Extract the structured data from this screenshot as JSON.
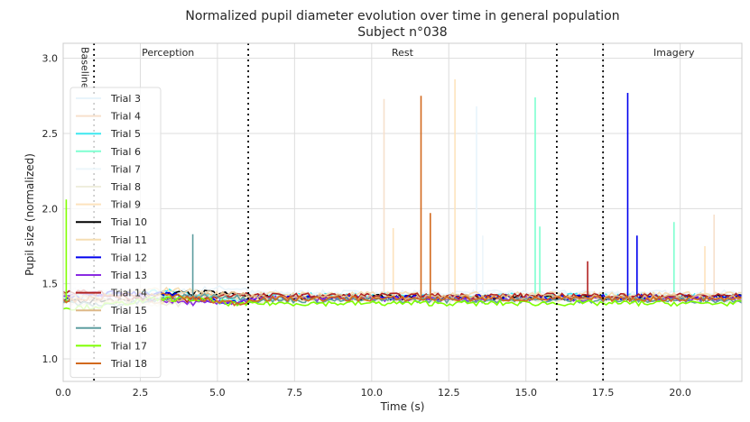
{
  "chart_data": {
    "type": "line",
    "title": "Normalized pupil diameter evolution over time in general population",
    "subtitle": "Subject n°038",
    "xlabel": "Time (s)",
    "ylabel": "Pupil size (normalized)",
    "xlim": [
      0,
      22
    ],
    "ylim": [
      0.85,
      3.1
    ],
    "xticks": [
      0,
      2.5,
      5,
      7.5,
      10,
      12.5,
      15,
      17.5,
      20
    ],
    "xtick_labels": [
      "0.0",
      "2.5",
      "5.0",
      "7.5",
      "10.0",
      "12.5",
      "15.0",
      "17.5",
      "20.0"
    ],
    "yticks": [
      1.0,
      1.5,
      2.0,
      2.5,
      3.0
    ],
    "ytick_labels": [
      "1.0",
      "1.5",
      "2.0",
      "2.5",
      "3.0"
    ],
    "grid": true,
    "legend_position": "left",
    "phase_boundaries": [
      1,
      6,
      16,
      17.5
    ],
    "phase_labels": [
      {
        "text": "Baseline",
        "x": 0.75,
        "vertical": true
      },
      {
        "text": "Perception",
        "x": 3.4
      },
      {
        "text": "Rest",
        "x": 11
      },
      {
        "text": "Imagery",
        "x": 19.8
      }
    ],
    "series": [
      {
        "name": "Trial 3",
        "color": "#e8f4fb",
        "base": 1.44,
        "spikes": [
          [
            13.4,
            2.68
          ],
          [
            4.2,
            1.72
          ]
        ]
      },
      {
        "name": "Trial 4",
        "color": "#f7e0cc",
        "base": 1.4,
        "spikes": [
          [
            10.4,
            2.73
          ],
          [
            21.1,
            1.96
          ]
        ]
      },
      {
        "name": "Trial 5",
        "color": "#3ee8f0",
        "base": 1.42,
        "spikes": []
      },
      {
        "name": "Trial 6",
        "color": "#7fffd0",
        "base": 1.41,
        "spikes": [
          [
            15.3,
            2.74
          ],
          [
            15.45,
            1.88
          ],
          [
            19.8,
            1.91
          ]
        ]
      },
      {
        "name": "Trial 7",
        "color": "#ecf6fb",
        "base": 1.43,
        "spikes": [
          [
            13.6,
            1.82
          ]
        ]
      },
      {
        "name": "Trial 8",
        "color": "#efeedd",
        "base": 1.39,
        "spikes": []
      },
      {
        "name": "Trial 9",
        "color": "#fde3bd",
        "base": 1.4,
        "spikes": [
          [
            12.7,
            2.86
          ],
          [
            10.7,
            1.87
          ],
          [
            20.8,
            1.75
          ]
        ]
      },
      {
        "name": "Trial 10",
        "color": "#000000",
        "base": 1.41,
        "spikes": []
      },
      {
        "name": "Trial 11",
        "color": "#f5deb3",
        "base": 1.43,
        "spikes": []
      },
      {
        "name": "Trial 12",
        "color": "#0000ee",
        "base": 1.41,
        "spikes": [
          [
            18.3,
            2.77
          ],
          [
            18.6,
            1.82
          ]
        ]
      },
      {
        "name": "Trial 13",
        "color": "#8a2be2",
        "base": 1.4,
        "spikes": []
      },
      {
        "name": "Trial 14",
        "color": "#b22222",
        "base": 1.42,
        "spikes": [
          [
            17.0,
            1.65
          ]
        ]
      },
      {
        "name": "Trial 15",
        "color": "#deb887",
        "base": 1.41,
        "spikes": []
      },
      {
        "name": "Trial 16",
        "color": "#5f9ea0",
        "base": 1.39,
        "spikes": [
          [
            4.2,
            1.83
          ]
        ]
      },
      {
        "name": "Trial 17",
        "color": "#7fff00",
        "base": 1.37,
        "spikes": [
          [
            0.1,
            2.06
          ]
        ]
      },
      {
        "name": "Trial 18",
        "color": "#d2691e",
        "base": 1.4,
        "spikes": [
          [
            11.6,
            2.75
          ],
          [
            11.9,
            1.97
          ]
        ]
      }
    ]
  }
}
